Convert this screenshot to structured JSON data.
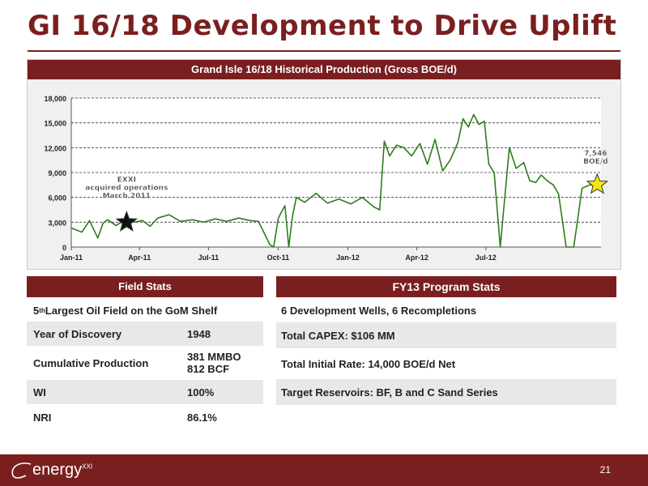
{
  "slide": {
    "title": "GI 16/18 Development to Drive Uplift",
    "page_number": "21",
    "logo_text": "energy",
    "logo_sup": "XXI"
  },
  "chart_data": {
    "type": "line",
    "title": "Grand Isle 16/18 Historical Production (Gross BOE/d)",
    "xlabel": "",
    "ylabel": "",
    "ylim": [
      0,
      18000
    ],
    "y_ticks": [
      "0",
      "3,000",
      "6,000",
      "9,000",
      "12,000",
      "15,000",
      "18,000"
    ],
    "x_tick_labels": [
      "Jan-11",
      "Apr-11",
      "Jul-11",
      "Oct-11",
      "Jan-12",
      "Apr-12",
      "Jul-12"
    ],
    "x_tick_dates": [
      "2011-01-01",
      "2011-04-01",
      "2011-07-01",
      "2011-10-01",
      "2012-01-01",
      "2012-04-01",
      "2012-07-01"
    ],
    "xlim": [
      "2011-01-01",
      "2012-11-30"
    ],
    "grid": true,
    "series_color": "#2e7d1e",
    "series": [
      {
        "x": [
          "2011-01-01",
          "2011-01-15",
          "2011-01-25",
          "2011-02-05",
          "2011-02-12",
          "2011-02-18",
          "2011-03-01",
          "2011-03-15",
          "2011-03-25",
          "2011-04-05",
          "2011-04-15",
          "2011-04-25",
          "2011-05-10",
          "2011-05-25",
          "2011-06-10",
          "2011-06-25",
          "2011-07-10",
          "2011-07-25",
          "2011-08-10",
          "2011-08-25",
          "2011-09-05",
          "2011-09-20",
          "2011-09-25",
          "2011-10-01",
          "2011-10-05",
          "2011-10-10",
          "2011-10-15",
          "2011-10-20",
          "2011-10-25",
          "2011-11-05",
          "2011-11-20",
          "2011-12-05",
          "2011-12-20",
          "2012-01-05",
          "2012-01-20",
          "2012-02-05",
          "2012-02-12",
          "2012-02-18",
          "2012-02-25",
          "2012-03-05",
          "2012-03-15",
          "2012-03-25",
          "2012-04-05",
          "2012-04-15",
          "2012-04-25",
          "2012-05-05",
          "2012-05-15",
          "2012-05-25",
          "2012-06-01",
          "2012-06-08",
          "2012-06-15",
          "2012-06-22",
          "2012-06-29",
          "2012-07-05",
          "2012-07-12",
          "2012-07-20",
          "2012-08-01",
          "2012-08-10",
          "2012-08-20",
          "2012-08-28",
          "2012-09-05",
          "2012-09-12",
          "2012-09-20",
          "2012-09-28",
          "2012-10-05",
          "2012-10-15",
          "2012-10-25",
          "2012-11-05",
          "2012-11-15",
          "2012-11-25"
        ],
        "y": [
          2300,
          1800,
          3200,
          1100,
          2900,
          3300,
          2600,
          3400,
          3000,
          3200,
          2500,
          3500,
          3900,
          3100,
          3300,
          3000,
          3400,
          3100,
          3500,
          3200,
          3100,
          300,
          0,
          3400,
          4200,
          5000,
          0,
          3800,
          6000,
          5400,
          6500,
          5300,
          5800,
          5200,
          6000,
          4800,
          4500,
          12800,
          11000,
          12300,
          12000,
          11000,
          12500,
          10000,
          13000,
          9200,
          10500,
          12600,
          15500,
          14500,
          16000,
          14800,
          15200,
          10000,
          9000,
          0,
          12000,
          9500,
          10200,
          8000,
          7800,
          8700,
          8000,
          7500,
          6400,
          0,
          0,
          7100,
          7500,
          7500
        ],
        "step_marker": "none"
      }
    ],
    "annotations": [
      {
        "id": "exxi",
        "lines": [
          "EXXI",
          "acquired operations",
          "March 2011"
        ]
      },
      {
        "id": "current",
        "lines": [
          "7,546",
          "BOE/d"
        ]
      }
    ],
    "annotation_dates": {
      "exxi": "2011-03-15",
      "current": "2012-11-25"
    },
    "annotation_values": {
      "exxi": 3000,
      "current": 7546
    },
    "marker_colors": {
      "exxi": "#111111",
      "current": "#f5e614"
    }
  },
  "field_stats": {
    "header": "Field Stats",
    "largest_prefix": "5",
    "largest_sup": "th",
    "largest_suffix": " Largest Oil Field on the GoM Shelf",
    "rows": [
      {
        "label": "Year of Discovery",
        "value": "1948"
      },
      {
        "label": "Cumulative Production",
        "value": "381 MMBO",
        "value2": "812 BCF"
      },
      {
        "label": "WI",
        "value": "100%"
      },
      {
        "label": "NRI",
        "value": "86.1%"
      }
    ]
  },
  "program_stats": {
    "header": "FY13 Program Stats",
    "rows": [
      "6 Development Wells, 6 Recompletions",
      "Total CAPEX: $106 MM",
      "Total Initial Rate: 14,000 BOE/d Net",
      "Target Reservoirs: BF, B and C Sand Series"
    ]
  },
  "colors": {
    "brand": "#7a1f20",
    "shade": "#e8e8e8"
  }
}
